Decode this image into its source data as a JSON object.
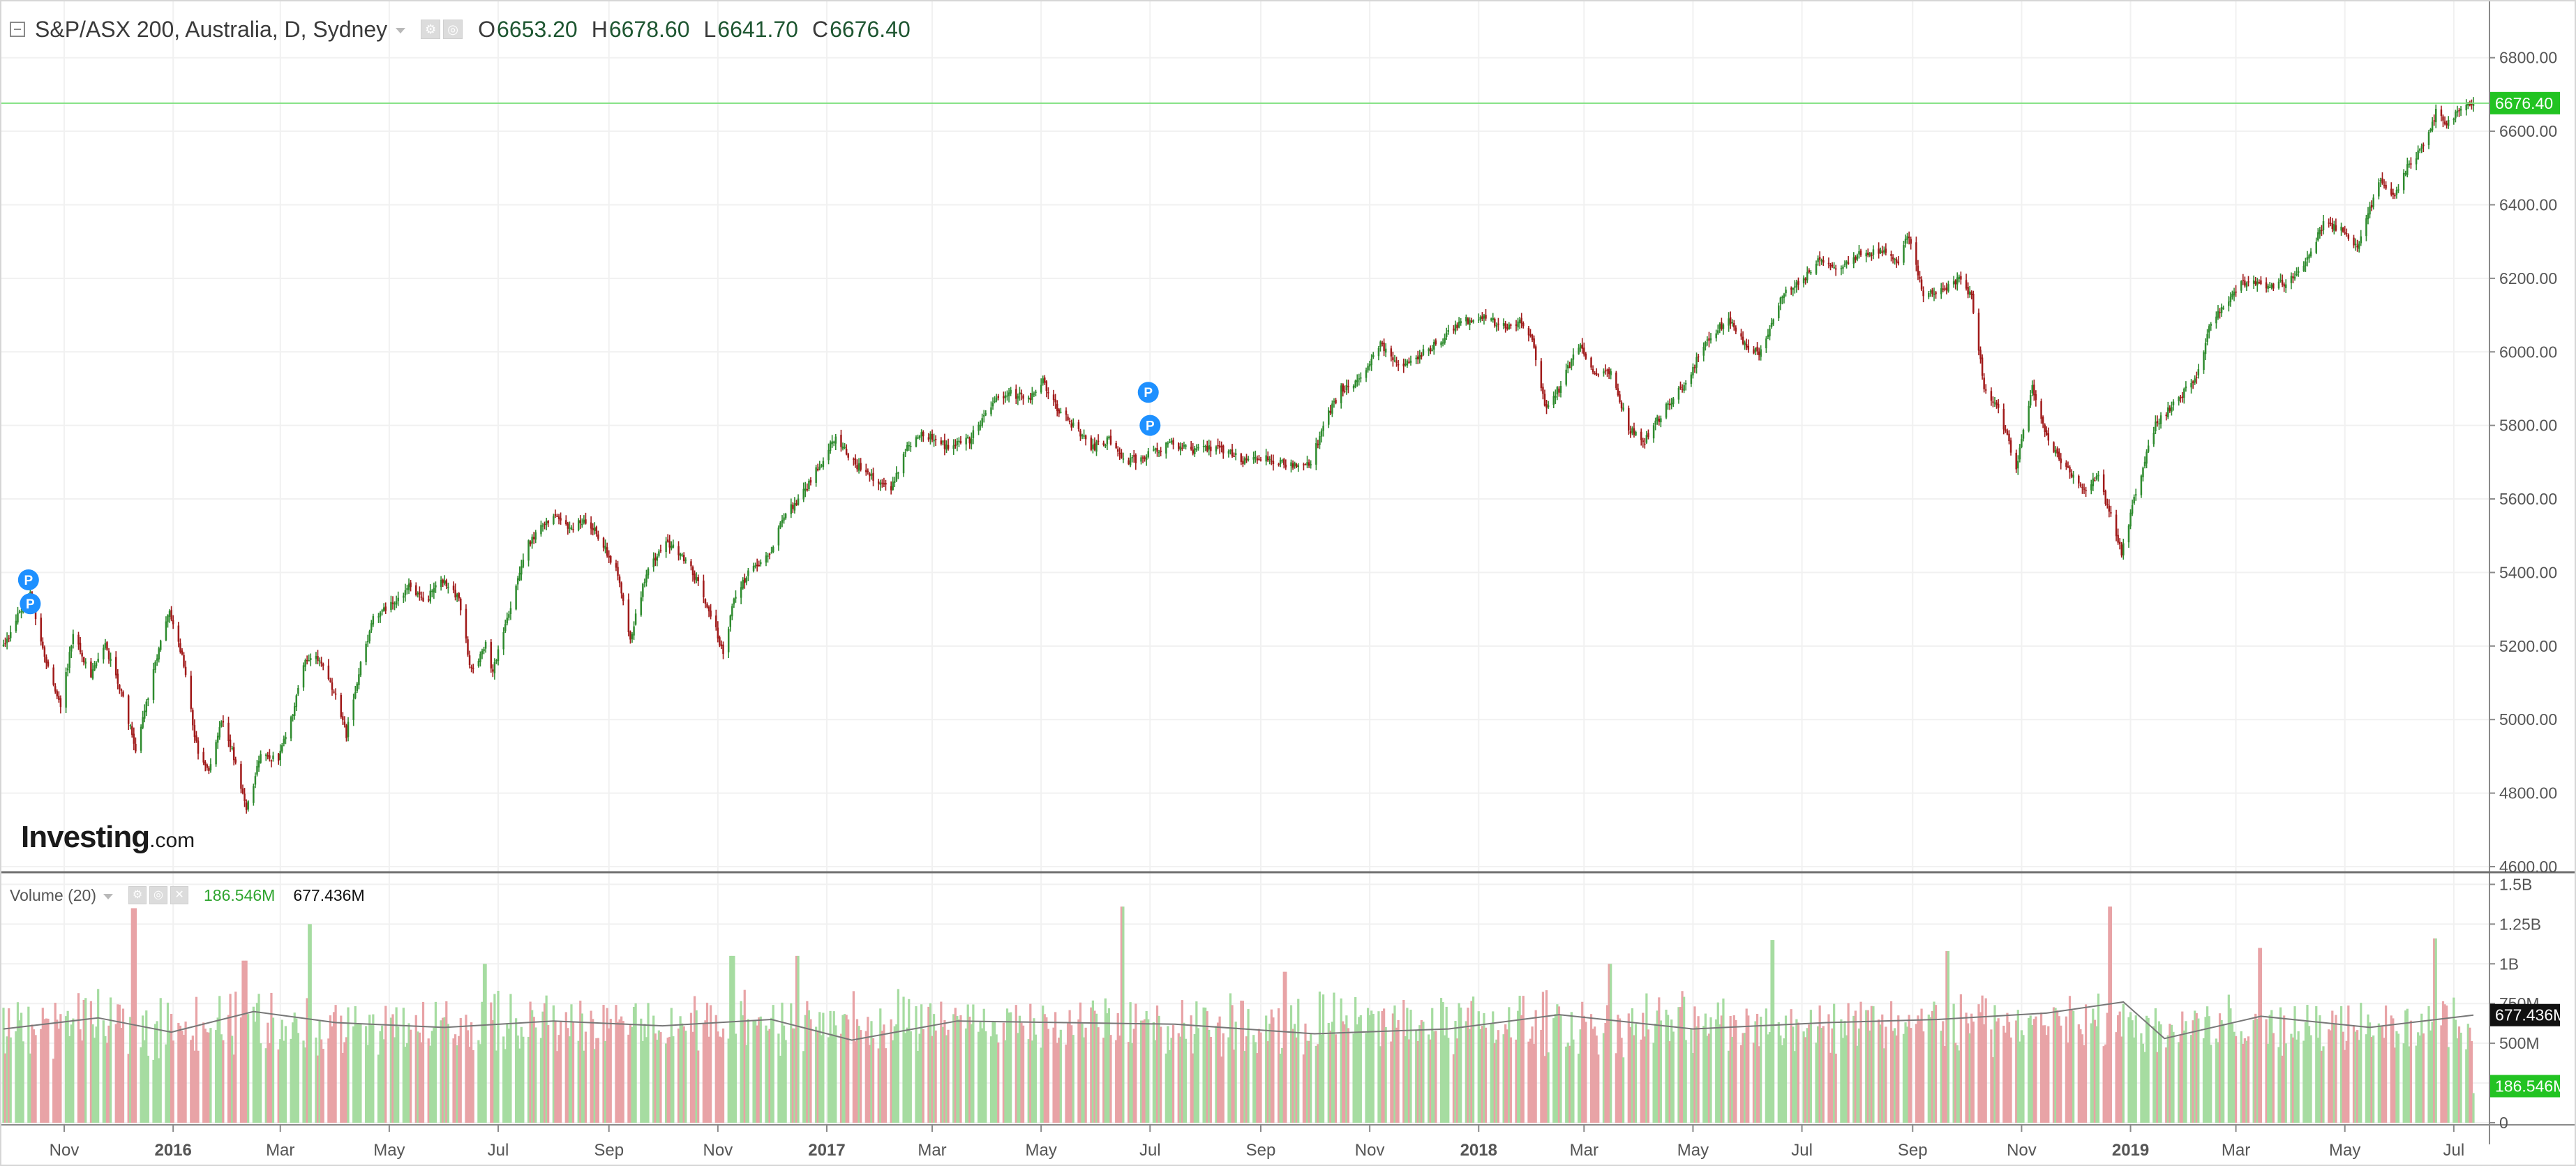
{
  "header": {
    "symbol": "S&P/ASX 200, Australia, D, Sydney",
    "open_label": "O",
    "open_value": "6653.20",
    "high_label": "H",
    "high_value": "6678.60",
    "low_label": "L",
    "low_value": "6641.70",
    "close_label": "C",
    "close_value": "6676.40"
  },
  "volume_legend": {
    "title": "Volume (20)",
    "current": "186.546M",
    "ma": "677.436M"
  },
  "watermark": {
    "brand": "Investing",
    "suffix": ".com"
  },
  "last_price_tag": "6676.40",
  "volume_current_tag": "186.546M",
  "volume_ma_tag": "677.436M",
  "markers": [
    {
      "symbol": "P",
      "x": "2015-10-12",
      "y": 5380
    },
    {
      "symbol": "P",
      "x": "2015-10-13",
      "y": 5315
    },
    {
      "symbol": "P",
      "x": "2017-06-30",
      "y": 5890
    },
    {
      "symbol": "P",
      "x": "2017-07-01",
      "y": 5800
    }
  ],
  "chart_data": [
    {
      "type": "candlestick",
      "title": "S&P/ASX 200, Australia, D, Sydney",
      "x_type": "date",
      "x_range": [
        "2015-09-28",
        "2019-07-12"
      ],
      "ylim": [
        4600,
        6900
      ],
      "y_ticks": [
        4600,
        4800,
        5000,
        5200,
        5400,
        5600,
        5800,
        6000,
        6200,
        6400,
        6600,
        6800
      ],
      "y_tick_labels": [
        "4600.00",
        "4800.00",
        "5000.00",
        "5200.00",
        "5400.00",
        "5600.00",
        "5800.00",
        "6000.00",
        "6200.00",
        "6400.00",
        "6600.00",
        "6800.00"
      ],
      "x_tick_labels": [
        {
          "x": "2015-11-01",
          "label": "Nov"
        },
        {
          "x": "2016-01-01",
          "label": "2016",
          "bold": true
        },
        {
          "x": "2016-03-01",
          "label": "Mar"
        },
        {
          "x": "2016-05-01",
          "label": "May"
        },
        {
          "x": "2016-07-01",
          "label": "Jul"
        },
        {
          "x": "2016-09-01",
          "label": "Sep"
        },
        {
          "x": "2016-11-01",
          "label": "Nov"
        },
        {
          "x": "2017-01-01",
          "label": "2017",
          "bold": true
        },
        {
          "x": "2017-03-01",
          "label": "Mar"
        },
        {
          "x": "2017-05-01",
          "label": "May"
        },
        {
          "x": "2017-07-01",
          "label": "Jul"
        },
        {
          "x": "2017-09-01",
          "label": "Sep"
        },
        {
          "x": "2017-11-01",
          "label": "Nov"
        },
        {
          "x": "2018-01-01",
          "label": "2018",
          "bold": true
        },
        {
          "x": "2018-03-01",
          "label": "Mar"
        },
        {
          "x": "2018-05-01",
          "label": "May"
        },
        {
          "x": "2018-07-01",
          "label": "Jul"
        },
        {
          "x": "2018-09-01",
          "label": "Sep"
        },
        {
          "x": "2018-11-01",
          "label": "Nov"
        },
        {
          "x": "2019-01-01",
          "label": "2019",
          "bold": true
        },
        {
          "x": "2019-03-01",
          "label": "Mar"
        },
        {
          "x": "2019-05-01",
          "label": "May"
        },
        {
          "x": "2019-07-01",
          "label": "Jul"
        }
      ],
      "last_close": 6676.4,
      "up_color": "#2e8b2e",
      "down_color": "#a01919",
      "grid": true,
      "close_path": [
        {
          "x": "2015-09-28",
          "y": 5200
        },
        {
          "x": "2015-10-05",
          "y": 5270
        },
        {
          "x": "2015-10-13",
          "y": 5350
        },
        {
          "x": "2015-10-22",
          "y": 5150
        },
        {
          "x": "2015-10-30",
          "y": 5040
        },
        {
          "x": "2015-11-06",
          "y": 5230
        },
        {
          "x": "2015-11-16",
          "y": 5120
        },
        {
          "x": "2015-11-24",
          "y": 5200
        },
        {
          "x": "2015-12-02",
          "y": 5090
        },
        {
          "x": "2015-12-11",
          "y": 4920
        },
        {
          "x": "2015-12-21",
          "y": 5130
        },
        {
          "x": "2015-12-30",
          "y": 5300
        },
        {
          "x": "2016-01-07",
          "y": 5150
        },
        {
          "x": "2016-01-15",
          "y": 4900
        },
        {
          "x": "2016-01-21",
          "y": 4850
        },
        {
          "x": "2016-01-28",
          "y": 5000
        },
        {
          "x": "2016-02-03",
          "y": 4920
        },
        {
          "x": "2016-02-11",
          "y": 4760
        },
        {
          "x": "2016-02-19",
          "y": 4900
        },
        {
          "x": "2016-02-29",
          "y": 4890
        },
        {
          "x": "2016-03-07",
          "y": 5000
        },
        {
          "x": "2016-03-14",
          "y": 5150
        },
        {
          "x": "2016-03-22",
          "y": 5170
        },
        {
          "x": "2016-04-01",
          "y": 5060
        },
        {
          "x": "2016-04-07",
          "y": 4960
        },
        {
          "x": "2016-04-15",
          "y": 5150
        },
        {
          "x": "2016-04-22",
          "y": 5280
        },
        {
          "x": "2016-05-03",
          "y": 5320
        },
        {
          "x": "2016-05-12",
          "y": 5360
        },
        {
          "x": "2016-05-20",
          "y": 5320
        },
        {
          "x": "2016-05-31",
          "y": 5380
        },
        {
          "x": "2016-06-09",
          "y": 5330
        },
        {
          "x": "2016-06-16",
          "y": 5130
        },
        {
          "x": "2016-06-24",
          "y": 5200
        },
        {
          "x": "2016-06-28",
          "y": 5130
        },
        {
          "x": "2016-07-06",
          "y": 5280
        },
        {
          "x": "2016-07-18",
          "y": 5480
        },
        {
          "x": "2016-08-01",
          "y": 5560
        },
        {
          "x": "2016-08-09",
          "y": 5520
        },
        {
          "x": "2016-08-19",
          "y": 5540
        },
        {
          "x": "2016-08-26",
          "y": 5500
        },
        {
          "x": "2016-09-05",
          "y": 5410
        },
        {
          "x": "2016-09-13",
          "y": 5220
        },
        {
          "x": "2016-09-22",
          "y": 5400
        },
        {
          "x": "2016-10-03",
          "y": 5480
        },
        {
          "x": "2016-10-12",
          "y": 5450
        },
        {
          "x": "2016-10-20",
          "y": 5380
        },
        {
          "x": "2016-10-27",
          "y": 5300
        },
        {
          "x": "2016-11-04",
          "y": 5180
        },
        {
          "x": "2016-11-10",
          "y": 5330
        },
        {
          "x": "2016-11-18",
          "y": 5400
        },
        {
          "x": "2016-11-30",
          "y": 5450
        },
        {
          "x": "2016-12-08",
          "y": 5550
        },
        {
          "x": "2016-12-19",
          "y": 5620
        },
        {
          "x": "2016-12-29",
          "y": 5700
        },
        {
          "x": "2017-01-06",
          "y": 5770
        },
        {
          "x": "2017-01-16",
          "y": 5700
        },
        {
          "x": "2017-01-25",
          "y": 5660
        },
        {
          "x": "2017-02-06",
          "y": 5630
        },
        {
          "x": "2017-02-16",
          "y": 5750
        },
        {
          "x": "2017-02-24",
          "y": 5780
        },
        {
          "x": "2017-03-09",
          "y": 5740
        },
        {
          "x": "2017-03-22",
          "y": 5760
        },
        {
          "x": "2017-04-03",
          "y": 5860
        },
        {
          "x": "2017-04-13",
          "y": 5890
        },
        {
          "x": "2017-04-24",
          "y": 5870
        },
        {
          "x": "2017-05-02",
          "y": 5920
        },
        {
          "x": "2017-05-11",
          "y": 5840
        },
        {
          "x": "2017-05-19",
          "y": 5800
        },
        {
          "x": "2017-05-29",
          "y": 5740
        },
        {
          "x": "2017-06-08",
          "y": 5760
        },
        {
          "x": "2017-06-19",
          "y": 5700
        },
        {
          "x": "2017-06-30",
          "y": 5720
        },
        {
          "x": "2017-07-12",
          "y": 5750
        },
        {
          "x": "2017-07-26",
          "y": 5730
        },
        {
          "x": "2017-08-09",
          "y": 5740
        },
        {
          "x": "2017-08-23",
          "y": 5700
        },
        {
          "x": "2017-09-06",
          "y": 5710
        },
        {
          "x": "2017-09-15",
          "y": 5690
        },
        {
          "x": "2017-09-29",
          "y": 5700
        },
        {
          "x": "2017-10-06",
          "y": 5800
        },
        {
          "x": "2017-10-16",
          "y": 5900
        },
        {
          "x": "2017-10-27",
          "y": 5920
        },
        {
          "x": "2017-11-07",
          "y": 6020
        },
        {
          "x": "2017-11-17",
          "y": 5960
        },
        {
          "x": "2017-11-29",
          "y": 5990
        },
        {
          "x": "2017-12-11",
          "y": 6030
        },
        {
          "x": "2017-12-21",
          "y": 6080
        },
        {
          "x": "2018-01-04",
          "y": 6100
        },
        {
          "x": "2018-01-12",
          "y": 6070
        },
        {
          "x": "2018-01-24",
          "y": 6080
        },
        {
          "x": "2018-01-31",
          "y": 6040
        },
        {
          "x": "2018-02-07",
          "y": 5850
        },
        {
          "x": "2018-02-15",
          "y": 5900
        },
        {
          "x": "2018-02-26",
          "y": 6020
        },
        {
          "x": "2018-03-07",
          "y": 5940
        },
        {
          "x": "2018-03-16",
          "y": 5950
        },
        {
          "x": "2018-03-26",
          "y": 5790
        },
        {
          "x": "2018-04-04",
          "y": 5760
        },
        {
          "x": "2018-04-16",
          "y": 5850
        },
        {
          "x": "2018-04-27",
          "y": 5920
        },
        {
          "x": "2018-05-10",
          "y": 6040
        },
        {
          "x": "2018-05-21",
          "y": 6090
        },
        {
          "x": "2018-06-01",
          "y": 6010
        },
        {
          "x": "2018-06-08",
          "y": 6000
        },
        {
          "x": "2018-06-20",
          "y": 6150
        },
        {
          "x": "2018-07-02",
          "y": 6200
        },
        {
          "x": "2018-07-11",
          "y": 6250
        },
        {
          "x": "2018-07-23",
          "y": 6230
        },
        {
          "x": "2018-08-03",
          "y": 6270
        },
        {
          "x": "2018-08-15",
          "y": 6270
        },
        {
          "x": "2018-08-24",
          "y": 6250
        },
        {
          "x": "2018-08-30",
          "y": 6320
        },
        {
          "x": "2018-09-07",
          "y": 6150
        },
        {
          "x": "2018-09-17",
          "y": 6170
        },
        {
          "x": "2018-09-28",
          "y": 6200
        },
        {
          "x": "2018-10-04",
          "y": 6150
        },
        {
          "x": "2018-10-11",
          "y": 5900
        },
        {
          "x": "2018-10-19",
          "y": 5850
        },
        {
          "x": "2018-10-29",
          "y": 5680
        },
        {
          "x": "2018-11-07",
          "y": 5900
        },
        {
          "x": "2018-11-16",
          "y": 5750
        },
        {
          "x": "2018-11-27",
          "y": 5680
        },
        {
          "x": "2018-12-06",
          "y": 5620
        },
        {
          "x": "2018-12-14",
          "y": 5660
        },
        {
          "x": "2018-12-21",
          "y": 5550
        },
        {
          "x": "2018-12-27",
          "y": 5450
        },
        {
          "x": "2019-01-04",
          "y": 5620
        },
        {
          "x": "2019-01-15",
          "y": 5800
        },
        {
          "x": "2019-01-25",
          "y": 5860
        },
        {
          "x": "2019-02-06",
          "y": 5920
        },
        {
          "x": "2019-02-15",
          "y": 6080
        },
        {
          "x": "2019-02-27",
          "y": 6160
        },
        {
          "x": "2019-03-08",
          "y": 6200
        },
        {
          "x": "2019-03-20",
          "y": 6180
        },
        {
          "x": "2019-03-29",
          "y": 6190
        },
        {
          "x": "2019-04-10",
          "y": 6250
        },
        {
          "x": "2019-04-19",
          "y": 6350
        },
        {
          "x": "2019-04-30",
          "y": 6330
        },
        {
          "x": "2019-05-08",
          "y": 6280
        },
        {
          "x": "2019-05-16",
          "y": 6400
        },
        {
          "x": "2019-05-20",
          "y": 6470
        },
        {
          "x": "2019-05-29",
          "y": 6420
        },
        {
          "x": "2019-06-05",
          "y": 6500
        },
        {
          "x": "2019-06-14",
          "y": 6560
        },
        {
          "x": "2019-06-21",
          "y": 6650
        },
        {
          "x": "2019-06-28",
          "y": 6620
        },
        {
          "x": "2019-07-05",
          "y": 6660
        },
        {
          "x": "2019-07-12",
          "y": 6676.4
        }
      ]
    },
    {
      "type": "bar",
      "title": "Volume (20)",
      "x_type": "date",
      "x_range": [
        "2015-09-28",
        "2019-07-12"
      ],
      "ylim": [
        0,
        1550000000
      ],
      "y_ticks": [
        0,
        250000000,
        500000000,
        750000000,
        1000000000,
        1250000000,
        1500000000
      ],
      "y_tick_labels": [
        "0",
        "250M",
        "500M",
        "750M",
        "1B",
        "1.25B",
        "1.5B"
      ],
      "up_color": "#a6dca1",
      "down_color": "#e8a3a6",
      "ma_color": "#777777",
      "ma_period": 20,
      "last_volume": "186.546M",
      "last_ma": "677.436M",
      "typical_volume_range": [
        500000000,
        750000000
      ],
      "volume_ma_path": [
        {
          "x": "2015-09-28",
          "y": 590000000
        },
        {
          "x": "2015-11-20",
          "y": 660000000
        },
        {
          "x": "2015-12-31",
          "y": 570000000
        },
        {
          "x": "2016-02-15",
          "y": 700000000
        },
        {
          "x": "2016-04-01",
          "y": 630000000
        },
        {
          "x": "2016-06-01",
          "y": 600000000
        },
        {
          "x": "2016-08-01",
          "y": 640000000
        },
        {
          "x": "2016-10-01",
          "y": 610000000
        },
        {
          "x": "2016-12-01",
          "y": 650000000
        },
        {
          "x": "2017-01-15",
          "y": 520000000
        },
        {
          "x": "2017-03-15",
          "y": 640000000
        },
        {
          "x": "2017-05-15",
          "y": 630000000
        },
        {
          "x": "2017-07-15",
          "y": 620000000
        },
        {
          "x": "2017-10-01",
          "y": 560000000
        },
        {
          "x": "2017-12-15",
          "y": 590000000
        },
        {
          "x": "2018-02-15",
          "y": 680000000
        },
        {
          "x": "2018-05-01",
          "y": 590000000
        },
        {
          "x": "2018-07-15",
          "y": 630000000
        },
        {
          "x": "2018-09-15",
          "y": 650000000
        },
        {
          "x": "2018-11-15",
          "y": 690000000
        },
        {
          "x": "2018-12-28",
          "y": 760000000
        },
        {
          "x": "2019-01-20",
          "y": 530000000
        },
        {
          "x": "2019-03-15",
          "y": 670000000
        },
        {
          "x": "2019-05-15",
          "y": 600000000
        },
        {
          "x": "2019-07-12",
          "y": 677436000
        }
      ],
      "volume_spikes": [
        {
          "x": "2015-12-10",
          "y": 1350000000
        },
        {
          "x": "2016-02-10",
          "y": 1020000000
        },
        {
          "x": "2016-03-18",
          "y": 1250000000
        },
        {
          "x": "2016-06-24",
          "y": 1000000000
        },
        {
          "x": "2016-11-09",
          "y": 1050000000
        },
        {
          "x": "2016-12-16",
          "y": 1050000000
        },
        {
          "x": "2017-06-16",
          "y": 1360000000
        },
        {
          "x": "2017-09-15",
          "y": 950000000
        },
        {
          "x": "2018-03-16",
          "y": 1000000000
        },
        {
          "x": "2018-06-15",
          "y": 1150000000
        },
        {
          "x": "2018-09-21",
          "y": 1080000000
        },
        {
          "x": "2018-12-21",
          "y": 1360000000
        },
        {
          "x": "2019-03-15",
          "y": 1100000000
        },
        {
          "x": "2019-06-21",
          "y": 1160000000
        }
      ]
    }
  ]
}
